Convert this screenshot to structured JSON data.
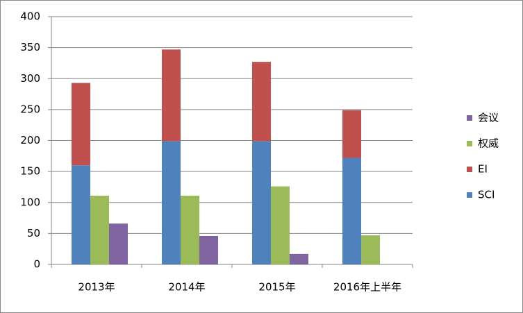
{
  "chart_data": {
    "type": "bar",
    "categories": [
      "2013年",
      "2014年",
      "2015年",
      "2016年上半年"
    ],
    "series": [
      {
        "name": "SCI",
        "color": "#4f81bd",
        "values": [
          160,
          199,
          199,
          172
        ]
      },
      {
        "name": "EI",
        "color": "#c0504d",
        "values": [
          133,
          148,
          128,
          77
        ],
        "stacked": true
      },
      {
        "name": "权威",
        "color": "#9bbb59",
        "values": [
          111,
          111,
          126,
          47
        ]
      },
      {
        "name": "会议",
        "color": "#8064a2",
        "values": [
          66,
          46,
          17,
          0
        ]
      }
    ],
    "ylim": [
      0,
      400
    ],
    "yticks": [
      0,
      50,
      100,
      150,
      200,
      250,
      300,
      350,
      400
    ],
    "grid": true,
    "legend": "right"
  }
}
